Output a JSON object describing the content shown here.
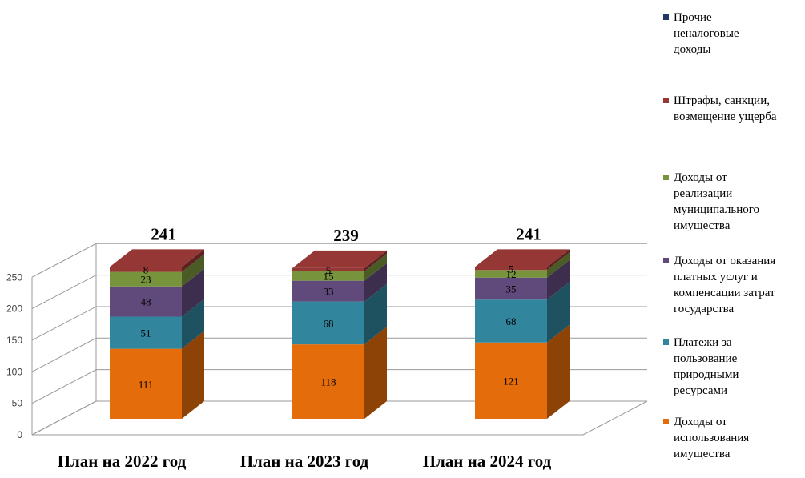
{
  "chart_data": {
    "type": "bar",
    "stacked": true,
    "three_d": true,
    "categories": [
      "План на 2022 год",
      "План на 2023 год",
      "План на 2024 год"
    ],
    "totals": [
      241,
      239,
      241
    ],
    "ylim": [
      0,
      250
    ],
    "yticks": [
      0,
      50,
      100,
      150,
      200,
      250
    ],
    "grid": true,
    "legend_position": "right",
    "series": [
      {
        "name": "Доходы от использования имущества",
        "color": "#E46C0A",
        "values": [
          111,
          118,
          121
        ],
        "labels": [
          "111",
          "118",
          "121"
        ]
      },
      {
        "name": "Платежи за пользование природными ресурсами",
        "color": "#31859C",
        "values": [
          51,
          68,
          68
        ],
        "labels": [
          "51",
          "68",
          "68"
        ]
      },
      {
        "name": "Доходы от оказания платных услуг и компенсации затрат государства",
        "color": "#604A7B",
        "values": [
          48,
          33,
          35
        ],
        "labels": [
          "48",
          "33",
          "35"
        ]
      },
      {
        "name": "Доходы от реализации муниципального имущества",
        "color": "#77933C",
        "values": [
          23,
          15,
          12
        ],
        "labels": [
          "23",
          "15",
          "12"
        ]
      },
      {
        "name": "Штрафы, санкции, возмещение ущерба",
        "color": "#953735",
        "values": [
          8,
          5,
          5
        ],
        "labels": [
          "8",
          "5",
          "5"
        ]
      },
      {
        "name": "Прочие неналоговые доходы",
        "color": "#1F3864",
        "values": [
          0,
          0,
          0
        ],
        "labels": [
          "",
          "",
          ""
        ]
      }
    ],
    "legend_lines": [
      [
        "Прочие",
        "неналоговые",
        "доходы"
      ],
      [
        "Штрафы, санкции,",
        "возмещение ущерба"
      ],
      [
        "Доходы от",
        "реализации",
        "муниципального",
        "имущества"
      ],
      [
        "Доходы от оказания",
        "платных услуг и",
        "компенсации затрат",
        "государства"
      ],
      [
        "Платежи за",
        "пользование",
        "природными",
        "ресурсами"
      ],
      [
        "Доходы от",
        "использования",
        "имущества"
      ]
    ]
  }
}
